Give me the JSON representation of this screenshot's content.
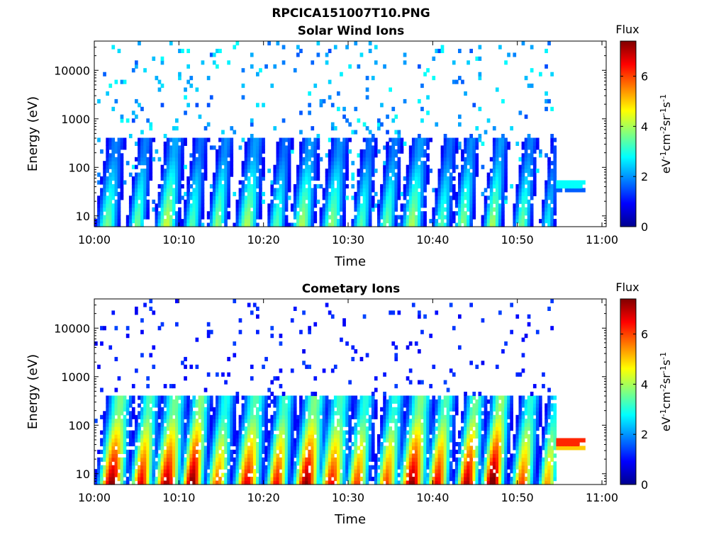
{
  "figure_title": "RPCICA151007T10.PNG",
  "colorbar_label_title": "Flux",
  "colorbar_unit_parts": [
    "eV",
    "-1",
    "cm",
    "-2",
    "sr",
    "-1",
    "s",
    "-1"
  ],
  "colormap": [
    "#00008f",
    "#0000ff",
    "#0080ff",
    "#00ffff",
    "#80ff80",
    "#ffff00",
    "#ff8000",
    "#ff0000",
    "#800000"
  ],
  "chart_data": [
    {
      "type": "heatmap",
      "title": "Solar Wind Ions",
      "xlabel": "Time",
      "ylabel": "Energy (eV)",
      "x_tick_labels": [
        "10:00",
        "10:10",
        "10:20",
        "10:30",
        "10:40",
        "10:50",
        "11:00"
      ],
      "x_ticks_min": [
        0,
        10,
        20,
        30,
        40,
        50,
        60
      ],
      "xlim_min": [
        0,
        60.5
      ],
      "y_scale": "log",
      "y_tick_labels": [
        "10",
        "100",
        "1000",
        "10000"
      ],
      "y_ticks": [
        10,
        100,
        1000,
        10000
      ],
      "ylim": [
        6,
        40000
      ],
      "colorbar": {
        "label": "Flux",
        "range": [
          0,
          7.4
        ],
        "tick_labels": [
          "0",
          "2",
          "4",
          "6"
        ],
        "ticks": [
          0,
          2,
          4,
          6
        ]
      },
      "background_intensity": 2.4,
      "bursts": [
        {
          "t": 1.5,
          "peak": 3.4,
          "width": 1.2
        },
        {
          "t": 5.0,
          "peak": 3.4,
          "width": 1.0
        },
        {
          "t": 8.5,
          "peak": 4.0,
          "width": 1.2
        },
        {
          "t": 11.5,
          "peak": 3.2,
          "width": 1.0
        },
        {
          "t": 14.5,
          "peak": 3.6,
          "width": 1.0
        },
        {
          "t": 18.0,
          "peak": 3.8,
          "width": 1.2
        },
        {
          "t": 21.5,
          "peak": 3.2,
          "width": 1.0
        },
        {
          "t": 24.5,
          "peak": 3.8,
          "width": 1.2
        },
        {
          "t": 28.0,
          "peak": 3.6,
          "width": 1.2
        },
        {
          "t": 31.5,
          "peak": 3.2,
          "width": 1.0
        },
        {
          "t": 34.5,
          "peak": 3.4,
          "width": 1.0
        },
        {
          "t": 37.5,
          "peak": 3.8,
          "width": 1.2
        },
        {
          "t": 41.0,
          "peak": 3.2,
          "width": 1.0
        },
        {
          "t": 43.5,
          "peak": 3.6,
          "width": 1.0
        },
        {
          "t": 47.0,
          "peak": 3.8,
          "width": 1.0
        },
        {
          "t": 50.5,
          "peak": 3.4,
          "width": 1.0
        },
        {
          "t": 53.5,
          "peak": 2.6,
          "width": 0.8
        }
      ],
      "end_band": {
        "t_start": 54.5,
        "t_end": 58.0,
        "energies_eV": [
          30,
          35,
          40
        ],
        "values": [
          1.4,
          1.6,
          2.8
        ]
      }
    },
    {
      "type": "heatmap",
      "title": "Cometary Ions",
      "xlabel": "Time",
      "ylabel": "Energy (eV)",
      "x_tick_labels": [
        "10:00",
        "10:10",
        "10:20",
        "10:30",
        "10:40",
        "10:50",
        "11:00"
      ],
      "x_ticks_min": [
        0,
        10,
        20,
        30,
        40,
        50,
        60
      ],
      "xlim_min": [
        0,
        60.5
      ],
      "y_scale": "log",
      "y_tick_labels": [
        "10",
        "100",
        "1000",
        "10000"
      ],
      "y_ticks": [
        10,
        100,
        1000,
        10000
      ],
      "ylim": [
        6,
        40000
      ],
      "colorbar": {
        "label": "Flux",
        "range": [
          0,
          7.4
        ],
        "tick_labels": [
          "0",
          "2",
          "4",
          "6"
        ],
        "ticks": [
          0,
          2,
          4,
          6
        ]
      },
      "background_intensity": 1.2,
      "bursts": [
        {
          "t": 2.0,
          "peak": 6.8,
          "width": 1.4
        },
        {
          "t": 5.5,
          "peak": 6.2,
          "width": 1.2
        },
        {
          "t": 8.5,
          "peak": 6.6,
          "width": 1.4
        },
        {
          "t": 11.5,
          "peak": 7.0,
          "width": 1.2
        },
        {
          "t": 14.5,
          "peak": 5.4,
          "width": 1.2
        },
        {
          "t": 18.0,
          "peak": 6.2,
          "width": 1.4
        },
        {
          "t": 21.5,
          "peak": 6.0,
          "width": 1.2
        },
        {
          "t": 25.0,
          "peak": 6.8,
          "width": 1.4
        },
        {
          "t": 28.0,
          "peak": 6.0,
          "width": 1.4
        },
        {
          "t": 31.0,
          "peak": 5.6,
          "width": 1.2
        },
        {
          "t": 34.5,
          "peak": 5.6,
          "width": 1.2
        },
        {
          "t": 37.5,
          "peak": 6.8,
          "width": 1.4
        },
        {
          "t": 40.5,
          "peak": 6.2,
          "width": 1.2
        },
        {
          "t": 44.0,
          "peak": 6.6,
          "width": 1.2
        },
        {
          "t": 47.0,
          "peak": 7.2,
          "width": 1.2
        },
        {
          "t": 50.5,
          "peak": 5.6,
          "width": 1.2
        },
        {
          "t": 53.5,
          "peak": 5.0,
          "width": 1.0
        }
      ],
      "end_band": {
        "t_start": 54.5,
        "t_end": 58.0,
        "energies_eV": [
          30,
          35,
          40
        ],
        "values": [
          4.2,
          5.0,
          6.2
        ]
      }
    }
  ]
}
